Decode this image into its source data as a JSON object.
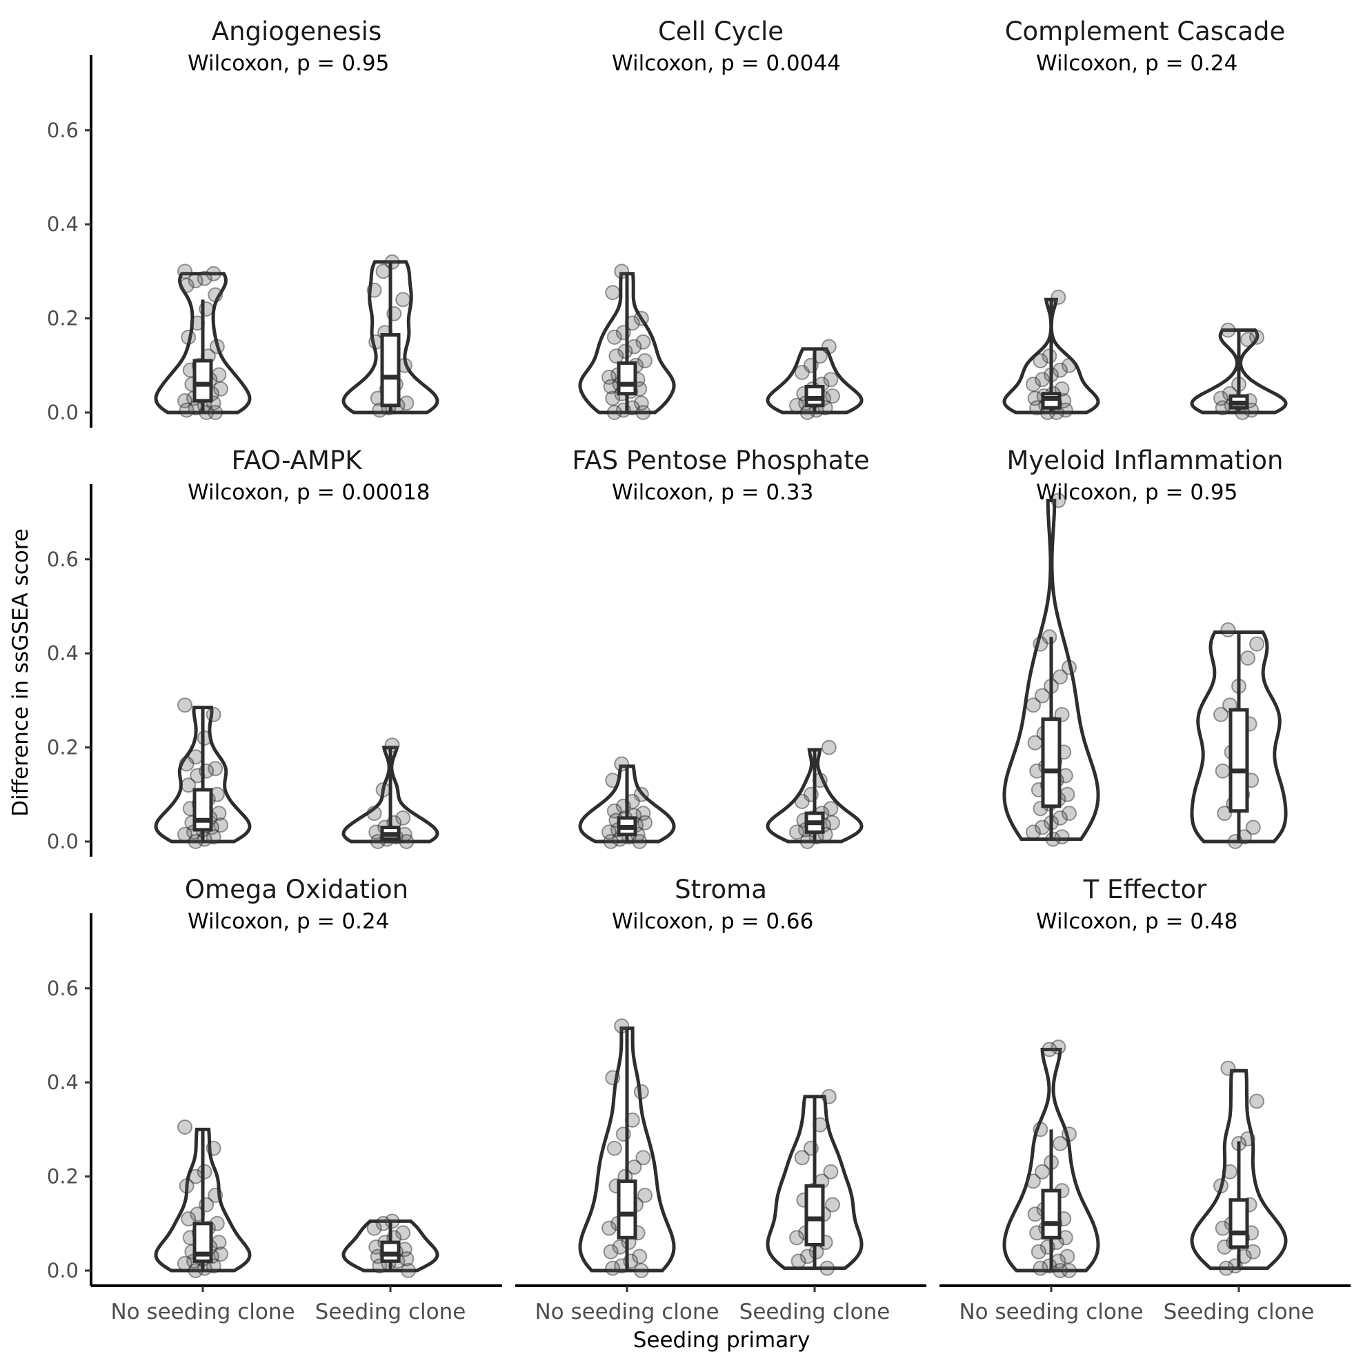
{
  "chart_data": {
    "type": "violin",
    "xlabel": "Seeding primary",
    "ylabel": "Difference in ssGSEA score",
    "categories": [
      "No seeding clone",
      "Seeding clone"
    ],
    "y_ticks": [
      "0.0",
      "0.2",
      "0.4",
      "0.6"
    ],
    "y_tick_values": [
      0,
      0.2,
      0.4,
      0.6
    ],
    "ylim": [
      -0.03,
      0.76
    ],
    "grid": false,
    "facets": [
      {
        "title": "Angiogenesis",
        "pvalue": "Wilcoxon, p = 0.95",
        "groups": [
          {
            "name": "No seeding clone",
            "min": 0.0,
            "q1": 0.025,
            "median": 0.06,
            "q3": 0.11,
            "max": 0.24,
            "vmax": 0.295,
            "points": [
              0.3,
              0.295,
              0.285,
              0.28,
              0.27,
              0.25,
              0.22,
              0.19,
              0.16,
              0.14,
              0.12,
              0.1,
              0.09,
              0.08,
              0.07,
              0.065,
              0.06,
              0.05,
              0.04,
              0.035,
              0.03,
              0.025,
              0.02,
              0.015,
              0.01,
              0.005,
              0.0,
              0.0
            ]
          },
          {
            "name": "Seeding clone",
            "min": 0.0,
            "q1": 0.015,
            "median": 0.075,
            "q3": 0.165,
            "max": 0.32,
            "vmax": 0.32,
            "points": [
              0.32,
              0.3,
              0.26,
              0.24,
              0.21,
              0.17,
              0.15,
              0.1,
              0.06,
              0.05,
              0.03,
              0.02,
              0.015,
              0.01,
              0.005
            ]
          }
        ]
      },
      {
        "title": "Cell Cycle",
        "pvalue": "Wilcoxon, p = 0.0044",
        "groups": [
          {
            "name": "No seeding clone",
            "min": 0.0,
            "q1": 0.04,
            "median": 0.06,
            "q3": 0.105,
            "max": 0.295,
            "vmax": 0.295,
            "points": [
              0.3,
              0.255,
              0.2,
              0.19,
              0.17,
              0.16,
              0.15,
              0.14,
              0.13,
              0.12,
              0.11,
              0.1,
              0.09,
              0.08,
              0.075,
              0.07,
              0.065,
              0.06,
              0.055,
              0.05,
              0.045,
              0.04,
              0.03,
              0.02,
              0.01,
              0.005,
              0.0,
              0.0
            ]
          },
          {
            "name": "Seeding clone",
            "min": 0.0,
            "q1": 0.015,
            "median": 0.03,
            "q3": 0.055,
            "max": 0.135,
            "vmax": 0.135,
            "points": [
              0.14,
              0.12,
              0.1,
              0.085,
              0.07,
              0.06,
              0.05,
              0.04,
              0.035,
              0.03,
              0.025,
              0.02,
              0.015,
              0.01,
              0.005,
              0.0
            ]
          }
        ]
      },
      {
        "title": "Complement Cascade",
        "pvalue": "Wilcoxon, p = 0.24",
        "groups": [
          {
            "name": "No seeding clone",
            "min": 0.0,
            "q1": 0.01,
            "median": 0.03,
            "q3": 0.04,
            "max": 0.24,
            "vmax": 0.24,
            "points": [
              0.245,
              0.12,
              0.11,
              0.1,
              0.09,
              0.08,
              0.07,
              0.06,
              0.05,
              0.04,
              0.035,
              0.03,
              0.025,
              0.02,
              0.015,
              0.01,
              0.005,
              0.0,
              0.0
            ]
          },
          {
            "name": "Seeding clone",
            "min": 0.0,
            "q1": 0.01,
            "median": 0.02,
            "q3": 0.035,
            "max": 0.175,
            "vmax": 0.175,
            "points": [
              0.175,
              0.16,
              0.155,
              0.06,
              0.04,
              0.03,
              0.025,
              0.02,
              0.015,
              0.01,
              0.005,
              0.0
            ]
          }
        ]
      },
      {
        "title": "FAO-AMPK",
        "pvalue": "Wilcoxon, p = 0.00018",
        "groups": [
          {
            "name": "No seeding clone",
            "min": 0.0,
            "q1": 0.025,
            "median": 0.045,
            "q3": 0.11,
            "max": 0.285,
            "vmax": 0.285,
            "points": [
              0.29,
              0.27,
              0.22,
              0.18,
              0.165,
              0.155,
              0.15,
              0.14,
              0.12,
              0.1,
              0.09,
              0.08,
              0.07,
              0.06,
              0.05,
              0.045,
              0.04,
              0.035,
              0.03,
              0.025,
              0.02,
              0.015,
              0.01,
              0.005,
              0.0
            ]
          },
          {
            "name": "Seeding clone",
            "min": 0.0,
            "q1": 0.005,
            "median": 0.015,
            "q3": 0.03,
            "max": 0.2,
            "vmax": 0.2,
            "points": [
              0.205,
              0.11,
              0.06,
              0.05,
              0.04,
              0.03,
              0.02,
              0.015,
              0.01,
              0.005,
              0.0,
              0.0
            ]
          }
        ]
      },
      {
        "title": "FAS Pentose Phosphate",
        "pvalue": "Wilcoxon, p = 0.33",
        "groups": [
          {
            "name": "No seeding clone",
            "min": 0.0,
            "q1": 0.015,
            "median": 0.03,
            "q3": 0.05,
            "max": 0.16,
            "vmax": 0.16,
            "points": [
              0.165,
              0.13,
              0.1,
              0.085,
              0.075,
              0.065,
              0.06,
              0.055,
              0.05,
              0.045,
              0.04,
              0.035,
              0.03,
              0.025,
              0.02,
              0.015,
              0.01,
              0.005,
              0.0,
              0.0
            ]
          },
          {
            "name": "Seeding clone",
            "min": 0.0,
            "q1": 0.02,
            "median": 0.04,
            "q3": 0.06,
            "max": 0.195,
            "vmax": 0.195,
            "points": [
              0.2,
              0.13,
              0.1,
              0.085,
              0.07,
              0.06,
              0.05,
              0.045,
              0.04,
              0.035,
              0.03,
              0.025,
              0.02,
              0.015,
              0.01,
              0.0
            ]
          }
        ]
      },
      {
        "title": "Myeloid Inflammation",
        "pvalue": "Wilcoxon, p = 0.95",
        "groups": [
          {
            "name": "No seeding clone",
            "min": 0.005,
            "q1": 0.075,
            "median": 0.15,
            "q3": 0.26,
            "max": 0.435,
            "vmax": 0.725,
            "points": [
              0.725,
              0.435,
              0.42,
              0.37,
              0.35,
              0.33,
              0.31,
              0.29,
              0.27,
              0.25,
              0.23,
              0.21,
              0.19,
              0.17,
              0.16,
              0.15,
              0.14,
              0.13,
              0.12,
              0.11,
              0.1,
              0.09,
              0.08,
              0.07,
              0.06,
              0.05,
              0.04,
              0.03,
              0.02,
              0.01,
              0.005
            ]
          },
          {
            "name": "Seeding clone",
            "min": 0.0,
            "q1": 0.065,
            "median": 0.15,
            "q3": 0.28,
            "max": 0.445,
            "vmax": 0.445,
            "points": [
              0.45,
              0.42,
              0.39,
              0.33,
              0.29,
              0.27,
              0.25,
              0.22,
              0.19,
              0.15,
              0.13,
              0.1,
              0.08,
              0.06,
              0.03,
              0.01,
              0.0
            ]
          }
        ]
      },
      {
        "title": "Omega Oxidation",
        "pvalue": "Wilcoxon, p = 0.24",
        "groups": [
          {
            "name": "No seeding clone",
            "min": 0.0,
            "q1": 0.02,
            "median": 0.035,
            "q3": 0.1,
            "max": 0.3,
            "vmax": 0.3,
            "points": [
              0.305,
              0.26,
              0.21,
              0.2,
              0.18,
              0.16,
              0.14,
              0.12,
              0.11,
              0.1,
              0.09,
              0.08,
              0.07,
              0.06,
              0.05,
              0.045,
              0.04,
              0.035,
              0.03,
              0.025,
              0.02,
              0.015,
              0.01,
              0.005,
              0.0
            ]
          },
          {
            "name": "Seeding clone",
            "min": 0.0,
            "q1": 0.02,
            "median": 0.035,
            "q3": 0.06,
            "max": 0.105,
            "vmax": 0.105,
            "points": [
              0.105,
              0.1,
              0.09,
              0.08,
              0.07,
              0.06,
              0.05,
              0.045,
              0.04,
              0.035,
              0.03,
              0.025,
              0.02,
              0.015,
              0.01,
              0.0
            ]
          }
        ]
      },
      {
        "title": "Stroma",
        "pvalue": "Wilcoxon, p = 0.66",
        "groups": [
          {
            "name": "No seeding clone",
            "min": 0.0,
            "q1": 0.07,
            "median": 0.12,
            "q3": 0.19,
            "max": 0.515,
            "vmax": 0.515,
            "points": [
              0.52,
              0.41,
              0.38,
              0.32,
              0.29,
              0.26,
              0.24,
              0.22,
              0.2,
              0.18,
              0.16,
              0.14,
              0.12,
              0.1,
              0.09,
              0.08,
              0.06,
              0.05,
              0.04,
              0.03,
              0.02,
              0.01,
              0.005,
              0.0
            ]
          },
          {
            "name": "Seeding clone",
            "min": 0.005,
            "q1": 0.055,
            "median": 0.11,
            "q3": 0.18,
            "max": 0.37,
            "vmax": 0.37,
            "points": [
              0.37,
              0.31,
              0.26,
              0.24,
              0.21,
              0.19,
              0.17,
              0.15,
              0.14,
              0.12,
              0.1,
              0.08,
              0.07,
              0.06,
              0.04,
              0.03,
              0.02,
              0.005
            ]
          }
        ]
      },
      {
        "title": "T Effector",
        "pvalue": "Wilcoxon, p = 0.48",
        "groups": [
          {
            "name": "No seeding clone",
            "min": 0.0,
            "q1": 0.07,
            "median": 0.1,
            "q3": 0.17,
            "max": 0.3,
            "vmax": 0.47,
            "points": [
              0.475,
              0.47,
              0.3,
              0.29,
              0.27,
              0.23,
              0.21,
              0.19,
              0.17,
              0.15,
              0.13,
              0.12,
              0.11,
              0.1,
              0.09,
              0.08,
              0.07,
              0.06,
              0.05,
              0.04,
              0.03,
              0.02,
              0.01,
              0.005,
              0.0,
              0.0
            ]
          },
          {
            "name": "Seeding clone",
            "min": 0.005,
            "q1": 0.05,
            "median": 0.08,
            "q3": 0.15,
            "max": 0.275,
            "vmax": 0.425,
            "points": [
              0.43,
              0.36,
              0.28,
              0.27,
              0.21,
              0.18,
              0.14,
              0.12,
              0.1,
              0.09,
              0.08,
              0.07,
              0.06,
              0.05,
              0.04,
              0.03,
              0.01,
              0.005
            ]
          }
        ]
      }
    ]
  }
}
